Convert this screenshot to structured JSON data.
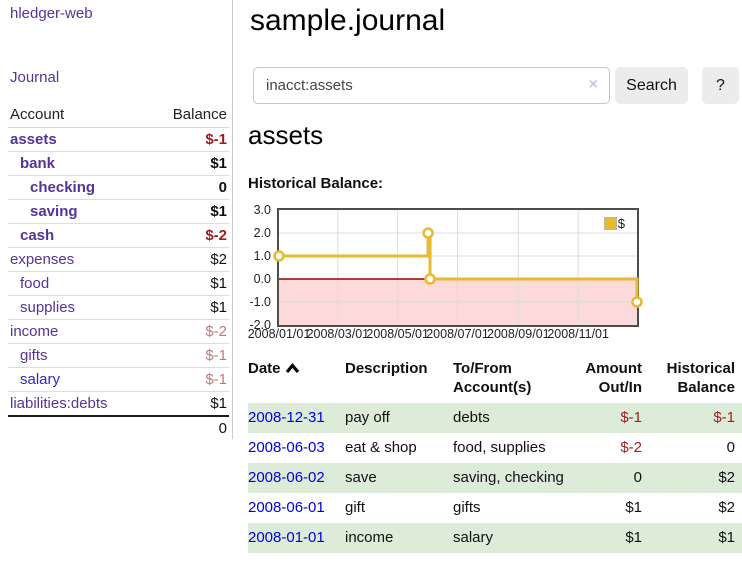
{
  "colors": {
    "purple": "#553399",
    "linkblue": "#0000dd",
    "linkblue2": "#2a2ad4",
    "darkred": "#9d1c1c",
    "rosy": "#bb7b7b",
    "rowgreen": "#ddecd9",
    "gold": "#e7ba30",
    "pink": "#fcdada",
    "zerored": "#990000",
    "grid": "#dcdcdc"
  },
  "app": {
    "title": "hledger-web",
    "nav_journal": "Journal"
  },
  "sidebar": {
    "header": {
      "account": "Account",
      "balance": "Balance"
    },
    "accounts": [
      {
        "label": "assets",
        "balance": "$-1",
        "indent": 1,
        "bold": true,
        "balance_class": "neg",
        "link_class": ""
      },
      {
        "label": "bank",
        "balance": "$1",
        "indent": 2,
        "bold": true,
        "balance_class": "",
        "link_class": ""
      },
      {
        "label": "checking",
        "balance": "0",
        "indent": 3,
        "bold": true,
        "balance_class": "",
        "link_class": ""
      },
      {
        "label": "saving",
        "balance": "$1",
        "indent": 3,
        "bold": true,
        "balance_class": "",
        "link_class": ""
      },
      {
        "label": "cash",
        "balance": "$-2",
        "indent": 2,
        "bold": true,
        "balance_class": "neg",
        "link_class": ""
      },
      {
        "label": "expenses",
        "balance": "$2",
        "indent": 1,
        "bold": false,
        "balance_class": "",
        "link_class": ""
      },
      {
        "label": "food",
        "balance": "$1",
        "indent": 2,
        "bold": false,
        "balance_class": "",
        "link_class": ""
      },
      {
        "label": "supplies",
        "balance": "$1",
        "indent": 2,
        "bold": false,
        "balance_class": "",
        "link_class": ""
      },
      {
        "label": "income",
        "balance": "$-2",
        "indent": 1,
        "bold": false,
        "balance_class": "rosy",
        "link_class": ""
      },
      {
        "label": "gifts",
        "balance": "$-1",
        "indent": 2,
        "bold": false,
        "balance_class": "rosy",
        "link_class": ""
      },
      {
        "label": "salary",
        "balance": "$-1",
        "indent": 2,
        "bold": false,
        "balance_class": "rosy",
        "link_class": "blue"
      },
      {
        "label": "liabilities:debts",
        "balance": "$1",
        "indent": 1,
        "bold": false,
        "balance_class": "",
        "link_class": ""
      }
    ],
    "total": "0"
  },
  "main": {
    "title": "sample.journal",
    "search": {
      "value": "inacct:assets",
      "clear_icon": "×",
      "button": "Search",
      "help_button": "?"
    },
    "account_heading": "assets",
    "chart_heading": "Historical Balance:"
  },
  "chart_data": {
    "type": "line",
    "title": "Historical Balance:",
    "line_style": "step-after",
    "xrange": [
      "2008-01-01",
      "2008-12-31"
    ],
    "ylim": [
      -2,
      3
    ],
    "x_tick_labels": [
      "2008/01/01",
      "2008/03/01",
      "2008/05/01",
      "2008/07/01",
      "2008/09/01",
      "2008/11/01"
    ],
    "y_tick_labels": [
      "3.0",
      "2.0",
      "1.0",
      "0.0",
      "-1.0",
      "-2.0"
    ],
    "legend": [
      {
        "label": "$"
      }
    ],
    "grid": true,
    "negative_region": true,
    "series": [
      {
        "name": "$",
        "points": [
          {
            "x": "2008-01-01",
            "y": 1
          },
          {
            "x": "2008-06-01",
            "y": 2
          },
          {
            "x": "2008-06-03",
            "y": 0
          },
          {
            "x": "2008-12-31",
            "y": -1
          }
        ]
      }
    ]
  },
  "transactions": {
    "headers": {
      "date": "Date",
      "description": "Description",
      "tofrom": "To/From Account(s)",
      "amount": "Amount Out/In",
      "balance": "Historical Balance"
    },
    "rows": [
      {
        "date": "2008-12-31",
        "description": "pay off",
        "tofrom": "debts",
        "amount": "$-1",
        "balance": "$-1"
      },
      {
        "date": "2008-06-03",
        "description": "eat & shop",
        "tofrom": "food, supplies",
        "amount": "$-2",
        "balance": "0"
      },
      {
        "date": "2008-06-02",
        "description": "save",
        "tofrom": "saving, checking",
        "amount": "0",
        "balance": "$2"
      },
      {
        "date": "2008-06-01",
        "description": "gift",
        "tofrom": "gifts",
        "amount": "$1",
        "balance": "$2"
      },
      {
        "date": "2008-01-01",
        "description": "income",
        "tofrom": "salary",
        "amount": "$1",
        "balance": "$1"
      }
    ]
  }
}
